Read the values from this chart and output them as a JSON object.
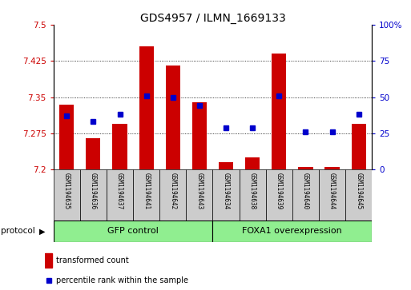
{
  "title": "GDS4957 / ILMN_1669133",
  "samples": [
    "GSM1194635",
    "GSM1194636",
    "GSM1194637",
    "GSM1194641",
    "GSM1194642",
    "GSM1194643",
    "GSM1194634",
    "GSM1194638",
    "GSM1194639",
    "GSM1194640",
    "GSM1194644",
    "GSM1194645"
  ],
  "red_values": [
    7.335,
    7.265,
    7.295,
    7.455,
    7.415,
    7.34,
    7.215,
    7.225,
    7.44,
    7.205,
    7.205,
    7.295
  ],
  "blue_values_pct": [
    37,
    33,
    38,
    51,
    50,
    44,
    29,
    29,
    51,
    26,
    26,
    38
  ],
  "ymin": 7.2,
  "ymax": 7.5,
  "y_ticks": [
    7.2,
    7.275,
    7.35,
    7.425,
    7.5
  ],
  "y_ticks_right": [
    0,
    25,
    50,
    75,
    100
  ],
  "group1_label": "GFP control",
  "group2_label": "FOXA1 overexpression",
  "group1_count": 6,
  "group2_count": 6,
  "protocol_label": "protocol",
  "legend1": "transformed count",
  "legend2": "percentile rank within the sample",
  "red_color": "#cc0000",
  "blue_color": "#0000cc",
  "bar_base": 7.2,
  "group_bg": "#90ee90",
  "sample_bg": "#cccccc",
  "bar_width": 0.55,
  "title_fontsize": 10,
  "tick_fontsize": 7.5,
  "sample_fontsize": 5.5,
  "group_fontsize": 8,
  "legend_fontsize": 7
}
